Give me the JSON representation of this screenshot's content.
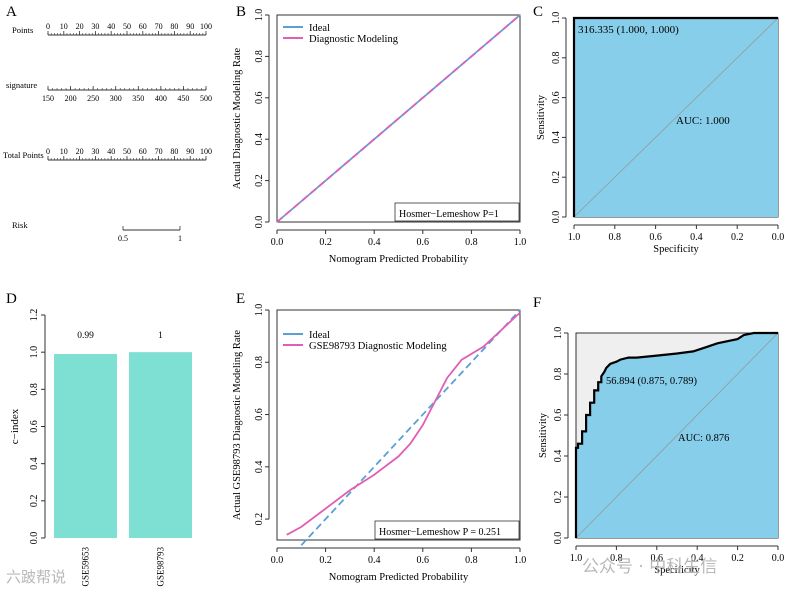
{
  "panels": {
    "A": "A",
    "B": "B",
    "C": "C",
    "D": "D",
    "E": "E",
    "F": "F"
  },
  "chart_data": [
    {
      "id": "A",
      "type": "nomogram",
      "rows": [
        {
          "label": "Points",
          "min": 0,
          "max": 100,
          "ticks": [
            0,
            10,
            20,
            30,
            40,
            50,
            60,
            70,
            80,
            90,
            100
          ],
          "minor_step": 2
        },
        {
          "label": "signature",
          "min": 150,
          "max": 500,
          "ticks": [
            150,
            200,
            250,
            300,
            350,
            400,
            450,
            500
          ],
          "minor_step": 10
        },
        {
          "label": "Total Points",
          "min": 0,
          "max": 100,
          "ticks": [
            0,
            10,
            20,
            30,
            40,
            50,
            60,
            70,
            80,
            90,
            100
          ],
          "minor_step": 2
        },
        {
          "label": "Risk",
          "min": 0.5,
          "max": 1,
          "ticks": [
            0.5,
            1
          ],
          "tick_labels": [
            "0.5",
            "1"
          ],
          "minor_step": 0
        }
      ]
    },
    {
      "id": "B",
      "type": "line",
      "xlabel": "Nomogram Predicted Probability",
      "ylabel": "Actual Diagnostic Modeling Rate",
      "xlim": [
        0,
        1
      ],
      "ylim": [
        0,
        1
      ],
      "xticks": [
        "0.0",
        "0.2",
        "0.4",
        "0.6",
        "0.8",
        "1.0"
      ],
      "yticks": [
        "0.0",
        "0.2",
        "0.4",
        "0.6",
        "0.8",
        "1.0"
      ],
      "series": [
        {
          "name": "Ideal",
          "color": "#5aa0d8",
          "dashed": false,
          "x": [
            0,
            1
          ],
          "y": [
            0,
            1
          ]
        },
        {
          "name": "Diagnostic Modeling",
          "color": "#e05fb4",
          "dashed": true,
          "x": [
            0,
            1
          ],
          "y": [
            0,
            1
          ]
        }
      ],
      "annotation": "Hosmer−Lemeshow   P=1"
    },
    {
      "id": "C",
      "type": "roc",
      "xlabel": "Specificity",
      "ylabel": "Sensitivity",
      "xticks": [
        "1.0",
        "0.8",
        "0.6",
        "0.4",
        "0.2",
        "0.0"
      ],
      "yticks": [
        "0.0",
        "0.2",
        "0.4",
        "0.6",
        "0.8",
        "1.0"
      ],
      "fill": "#87ceeb",
      "specificity": [
        1.0,
        1.0,
        0.0
      ],
      "sensitivity": [
        0.0,
        1.0,
        1.0
      ],
      "threshold_label": "316.335 (1.000, 1.000)",
      "auc_label": "AUC: 1.000"
    },
    {
      "id": "D",
      "type": "bar",
      "ylabel": "c−index",
      "ylim": [
        0,
        1.2
      ],
      "yticks": [
        "0.0",
        "0.2",
        "0.4",
        "0.6",
        "0.8",
        "1.0",
        "1.2"
      ],
      "categories": [
        "GSE59653",
        "GSE98793"
      ],
      "values": [
        0.99,
        1.0
      ],
      "value_labels": [
        "0.99",
        "1"
      ],
      "color": "#7ee0d2"
    },
    {
      "id": "E",
      "type": "line",
      "xlabel": "Nomogram Predicted Probability",
      "ylabel": "Actual GSE98793 Diagnostic Modeling Rate",
      "xlim": [
        0,
        1
      ],
      "ylim": [
        0.12,
        1.0
      ],
      "xticks": [
        "0.0",
        "0.2",
        "0.4",
        "0.6",
        "0.8",
        "1.0"
      ],
      "yticks": [
        "0.2",
        "0.4",
        "0.6",
        "0.8",
        "1.0"
      ],
      "series": [
        {
          "name": "Ideal",
          "color": "#5aa0d8",
          "dashed": true,
          "x": [
            0.1,
            1.0
          ],
          "y": [
            0.1,
            1.0
          ]
        },
        {
          "name": "GSE98793 Diagnostic Modeling",
          "color": "#e05fb4",
          "dashed": false,
          "x": [
            0.04,
            0.1,
            0.2,
            0.3,
            0.4,
            0.5,
            0.55,
            0.6,
            0.65,
            0.7,
            0.76,
            0.85,
            1.0
          ],
          "y": [
            0.14,
            0.17,
            0.24,
            0.31,
            0.37,
            0.44,
            0.49,
            0.56,
            0.65,
            0.74,
            0.81,
            0.86,
            0.99
          ]
        }
      ],
      "annotation": "Hosmer−Lemeshow  P = 0.251"
    },
    {
      "id": "F",
      "type": "roc",
      "xlabel": "Specificity",
      "ylabel": "Sensitivity",
      "xticks": [
        "1.0",
        "0.8",
        "0.6",
        "0.4",
        "0.2",
        "0.0"
      ],
      "yticks": [
        "0.0",
        "0.2",
        "0.4",
        "0.6",
        "0.8",
        "1.0"
      ],
      "fill": "#87ceeb",
      "specificity": [
        1.0,
        1.0,
        0.99,
        0.99,
        0.97,
        0.97,
        0.95,
        0.95,
        0.93,
        0.93,
        0.91,
        0.91,
        0.89,
        0.89,
        0.875,
        0.875,
        0.86,
        0.85,
        0.83,
        0.8,
        0.78,
        0.74,
        0.7,
        0.6,
        0.5,
        0.42,
        0.36,
        0.3,
        0.25,
        0.2,
        0.17,
        0.12,
        0.0
      ],
      "sensitivity": [
        0.0,
        0.44,
        0.44,
        0.46,
        0.46,
        0.52,
        0.52,
        0.6,
        0.6,
        0.66,
        0.66,
        0.72,
        0.72,
        0.76,
        0.76,
        0.789,
        0.81,
        0.83,
        0.85,
        0.86,
        0.87,
        0.88,
        0.88,
        0.89,
        0.9,
        0.91,
        0.93,
        0.95,
        0.96,
        0.97,
        0.99,
        1.0,
        1.0
      ],
      "threshold_label": "56.894 (0.875, 0.789)",
      "auc_label": "AUC: 0.876"
    }
  ],
  "watermark": {
    "left": "六跛帮说",
    "right": "公众号 · 中科生信"
  }
}
